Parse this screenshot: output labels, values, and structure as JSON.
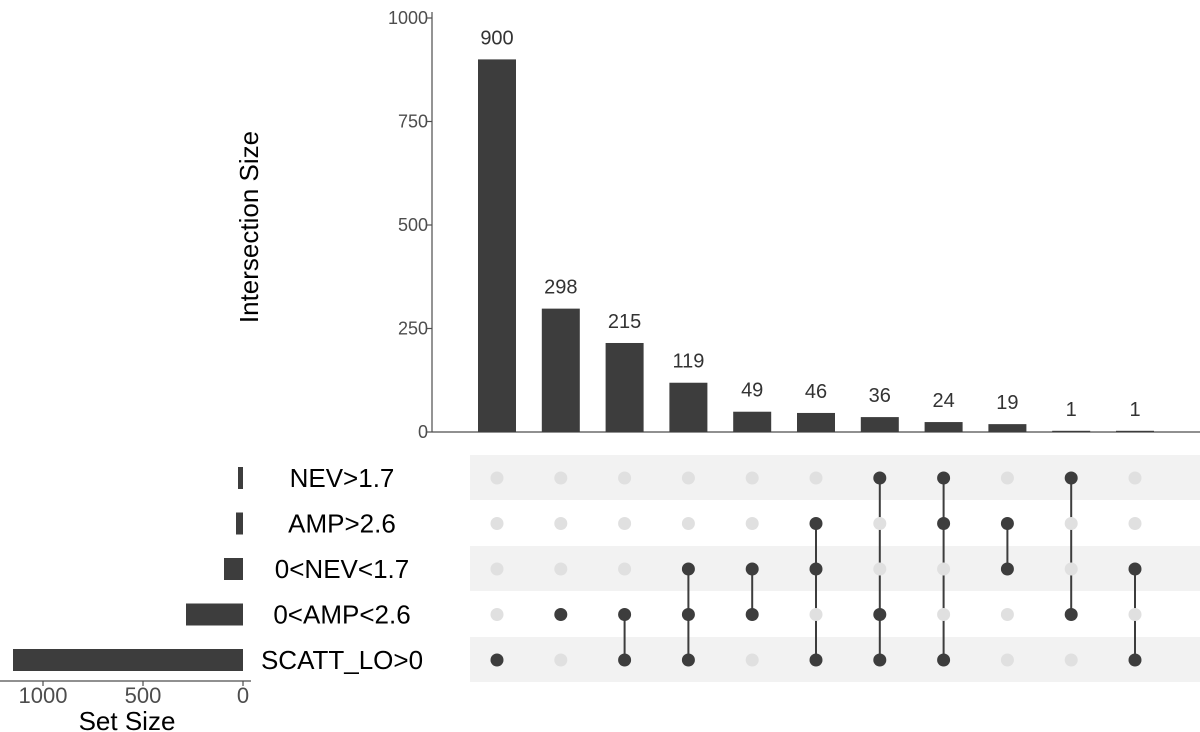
{
  "chart_data": {
    "type": "bar",
    "ylabel": "Intersection Size",
    "set_size_label": "Set Size",
    "ylim": [
      0,
      1000
    ],
    "y_ticks": [
      "0",
      "250",
      "500",
      "750",
      "1000"
    ],
    "y_tick_values": [
      0,
      250,
      500,
      750,
      1000
    ],
    "sets": [
      "NEV>1.7",
      "AMP>2.6",
      "0<NEV<1.7",
      "0<AMP<2.6",
      "SCATT_LO>0"
    ],
    "set_sizes": [
      25,
      35,
      95,
      285,
      1150
    ],
    "set_size_ticks": [
      "1000",
      "500",
      "0"
    ],
    "set_size_tick_values": [
      1000,
      500,
      0
    ],
    "set_size_max": 1200,
    "intersections": [
      {
        "value": 900,
        "label": "900",
        "members": [
          "SCATT_LO>0"
        ]
      },
      {
        "value": 298,
        "label": "298",
        "members": [
          "0<AMP<2.6"
        ]
      },
      {
        "value": 215,
        "label": "215",
        "members": [
          "0<AMP<2.6",
          "SCATT_LO>0"
        ]
      },
      {
        "value": 119,
        "label": "119",
        "members": [
          "0<NEV<1.7",
          "0<AMP<2.6",
          "SCATT_LO>0"
        ]
      },
      {
        "value": 49,
        "label": "49",
        "members": [
          "0<NEV<1.7",
          "0<AMP<2.6"
        ]
      },
      {
        "value": 46,
        "label": "46",
        "members": [
          "AMP>2.6",
          "0<NEV<1.7",
          "SCATT_LO>0"
        ]
      },
      {
        "value": 36,
        "label": "36",
        "members": [
          "NEV>1.7",
          "0<AMP<2.6",
          "SCATT_LO>0"
        ]
      },
      {
        "value": 24,
        "label": "24",
        "members": [
          "NEV>1.7",
          "AMP>2.6",
          "SCATT_LO>0"
        ]
      },
      {
        "value": 19,
        "label": "19",
        "members": [
          "AMP>2.6",
          "0<NEV<1.7"
        ]
      },
      {
        "value": 1,
        "label": "1",
        "members": [
          "NEV>1.7",
          "0<AMP<2.6"
        ]
      },
      {
        "value": 1,
        "label": "1",
        "members": [
          "0<NEV<1.7",
          "SCATT_LO>0"
        ]
      }
    ],
    "colors": {
      "bar": "#3d3d3d",
      "dot_active": "#3d3d3d",
      "dot_inactive": "#e0e0e0",
      "stripe": "#f2f2f2",
      "axis": "#4d4d4d"
    },
    "grid": false
  }
}
